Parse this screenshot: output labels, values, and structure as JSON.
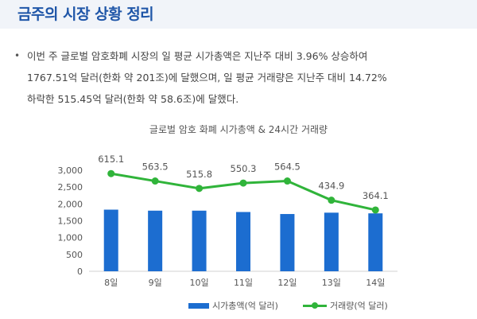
{
  "page": {
    "title": "금주의 시장 상황 정리",
    "summary_line1": "이번 주 글로벌 암호화폐 시장의 일 평균 시가총액은 지난주 대비 3.96% 상승하여",
    "summary_line2": "1767.51억 달러(한화 약 201조)에 달했으며, 일 평균 거래량은 지난주 대비 14.72%",
    "summary_line3": "하락한 515.45억 달러(한화 약 58.6조)에 달했다.",
    "bullet": "•"
  },
  "colors": {
    "bar": "#1c6dd0",
    "line": "#30b43a",
    "title": "#1f56a8"
  },
  "chart_data": {
    "type": "bar",
    "title": "글로벌 암호 화폐 시가총액 & 24시간 거래량",
    "categories": [
      "8일",
      "9일",
      "10일",
      "11일",
      "12일",
      "13일",
      "14일"
    ],
    "ylim": [
      0,
      3000
    ],
    "yticks": [
      "0",
      "500",
      "1,000",
      "1,500",
      "2,000",
      "2,500",
      "3,000"
    ],
    "grid": false,
    "legend_position": "bottom",
    "series": [
      {
        "name": "시가총액(억 달러)",
        "type": "bar",
        "values": [
          1830,
          1800,
          1800,
          1760,
          1700,
          1740,
          1720
        ]
      },
      {
        "name": "거래량(억 달러)",
        "type": "line",
        "values": [
          615.1,
          563.5,
          515.8,
          550.3,
          564.5,
          434.9,
          364.1
        ],
        "labels": [
          "615.1",
          "563.5",
          "515.8",
          "550.3",
          "564.5",
          "434.9",
          "364.1"
        ],
        "plot_y": [
          2900,
          2680,
          2460,
          2620,
          2680,
          2110,
          1820
        ]
      }
    ]
  }
}
